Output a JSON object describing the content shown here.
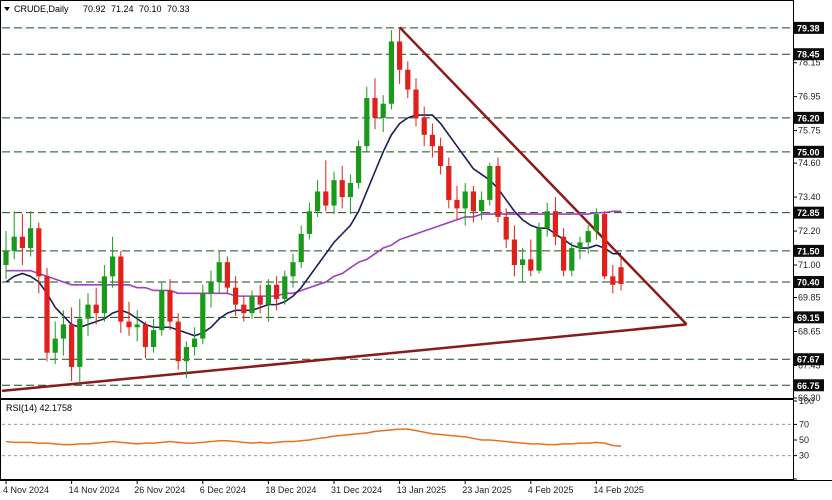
{
  "header": {
    "symbol_label": "CRUDE,Daily",
    "ohlc": [
      "70.92",
      "71.24",
      "70.10",
      "70.33"
    ]
  },
  "colors": {
    "bull": "#1a9a1a",
    "bear": "#e0201a",
    "sma_fast": "#1c1c5a",
    "sma_slow": "#a040c0",
    "trendline": "#8b1a1a",
    "rsi": "#e87020",
    "level_box": "#0b0b0b",
    "level_text": "#ffffff"
  },
  "chart_data": [
    {
      "type": "candlestick",
      "title": "",
      "symbol": "CRUDE",
      "timeframe": "Daily",
      "ylim": [
        66.3,
        79.8
      ],
      "y_ticks": [
        "79.38",
        "78.45",
        "78.15",
        "76.95",
        "76.20",
        "75.75",
        "75.00",
        "74.60",
        "73.40",
        "72.85",
        "72.20",
        "71.50",
        "71.00",
        "70.40",
        "69.85",
        "69.15",
        "68.65",
        "67.67",
        "67.45",
        "66.75",
        "66.30"
      ],
      "x_ticks": [
        "4 Nov 2024",
        "14 Nov 2024",
        "26 Nov 2024",
        "6 Dec 2024",
        "18 Dec 2024",
        "31 Dec 2024",
        "13 Jan 2025",
        "23 Jan 2025",
        "4 Feb 2025",
        "14 Feb 2025"
      ],
      "x_tick_index": [
        0,
        8,
        16,
        24,
        32,
        40,
        48,
        56,
        64,
        72
      ],
      "horizontal_levels": [
        79.38,
        78.45,
        76.2,
        75.0,
        72.85,
        71.5,
        70.4,
        69.15,
        67.67,
        66.75
      ],
      "candles": [
        {
          "o": 71.0,
          "h": 72.2,
          "l": 70.5,
          "c": 71.5
        },
        {
          "o": 71.5,
          "h": 72.9,
          "l": 71.2,
          "c": 72.0
        },
        {
          "o": 72.0,
          "h": 72.8,
          "l": 71.0,
          "c": 71.6
        },
        {
          "o": 71.6,
          "h": 72.9,
          "l": 71.3,
          "c": 72.3
        },
        {
          "o": 72.3,
          "h": 72.5,
          "l": 70.0,
          "c": 70.6
        },
        {
          "o": 70.6,
          "h": 70.9,
          "l": 67.6,
          "c": 67.9
        },
        {
          "o": 67.9,
          "h": 69.0,
          "l": 67.5,
          "c": 68.4
        },
        {
          "o": 68.4,
          "h": 69.4,
          "l": 67.8,
          "c": 68.9
        },
        {
          "o": 68.9,
          "h": 69.5,
          "l": 66.9,
          "c": 67.4
        },
        {
          "o": 67.4,
          "h": 69.8,
          "l": 66.8,
          "c": 69.1
        },
        {
          "o": 69.1,
          "h": 70.0,
          "l": 68.5,
          "c": 69.6
        },
        {
          "o": 69.6,
          "h": 70.2,
          "l": 68.9,
          "c": 69.3
        },
        {
          "o": 69.3,
          "h": 71.0,
          "l": 69.0,
          "c": 70.6
        },
        {
          "o": 70.6,
          "h": 72.0,
          "l": 70.2,
          "c": 71.3
        },
        {
          "o": 71.3,
          "h": 71.5,
          "l": 68.6,
          "c": 69.0
        },
        {
          "o": 69.0,
          "h": 69.7,
          "l": 68.5,
          "c": 68.8
        },
        {
          "o": 68.8,
          "h": 69.4,
          "l": 68.3,
          "c": 68.9
        },
        {
          "o": 68.9,
          "h": 69.0,
          "l": 67.7,
          "c": 68.1
        },
        {
          "o": 68.1,
          "h": 69.1,
          "l": 67.9,
          "c": 68.7
        },
        {
          "o": 68.7,
          "h": 70.4,
          "l": 68.5,
          "c": 70.1
        },
        {
          "o": 70.1,
          "h": 70.5,
          "l": 68.7,
          "c": 69.0
        },
        {
          "o": 69.0,
          "h": 69.3,
          "l": 67.3,
          "c": 67.6
        },
        {
          "o": 67.6,
          "h": 68.3,
          "l": 67.0,
          "c": 68.1
        },
        {
          "o": 68.1,
          "h": 68.8,
          "l": 67.8,
          "c": 68.4
        },
        {
          "o": 68.4,
          "h": 70.3,
          "l": 68.2,
          "c": 70.0
        },
        {
          "o": 70.0,
          "h": 70.8,
          "l": 69.5,
          "c": 70.4
        },
        {
          "o": 70.4,
          "h": 71.5,
          "l": 70.0,
          "c": 71.1
        },
        {
          "o": 71.1,
          "h": 71.3,
          "l": 70.0,
          "c": 70.2
        },
        {
          "o": 70.2,
          "h": 70.6,
          "l": 69.2,
          "c": 69.6
        },
        {
          "o": 69.6,
          "h": 69.9,
          "l": 69.0,
          "c": 69.3
        },
        {
          "o": 69.3,
          "h": 70.1,
          "l": 69.1,
          "c": 69.9
        },
        {
          "o": 69.9,
          "h": 70.3,
          "l": 69.3,
          "c": 69.6
        },
        {
          "o": 69.6,
          "h": 70.5,
          "l": 69.0,
          "c": 70.3
        },
        {
          "o": 70.3,
          "h": 70.6,
          "l": 69.4,
          "c": 69.8
        },
        {
          "o": 69.8,
          "h": 70.8,
          "l": 69.6,
          "c": 70.6
        },
        {
          "o": 70.6,
          "h": 71.4,
          "l": 70.2,
          "c": 71.1
        },
        {
          "o": 71.1,
          "h": 72.4,
          "l": 70.9,
          "c": 72.1
        },
        {
          "o": 72.1,
          "h": 73.2,
          "l": 71.9,
          "c": 72.9
        },
        {
          "o": 72.9,
          "h": 74.0,
          "l": 72.7,
          "c": 73.6
        },
        {
          "o": 73.6,
          "h": 74.7,
          "l": 72.9,
          "c": 73.1
        },
        {
          "o": 73.1,
          "h": 74.3,
          "l": 72.8,
          "c": 74.0
        },
        {
          "o": 74.0,
          "h": 74.5,
          "l": 73.0,
          "c": 73.4
        },
        {
          "o": 73.4,
          "h": 74.2,
          "l": 72.8,
          "c": 73.9
        },
        {
          "o": 73.9,
          "h": 75.4,
          "l": 73.7,
          "c": 75.2
        },
        {
          "o": 75.2,
          "h": 77.3,
          "l": 75.0,
          "c": 76.9
        },
        {
          "o": 76.9,
          "h": 77.6,
          "l": 75.8,
          "c": 76.2
        },
        {
          "o": 76.2,
          "h": 77.0,
          "l": 75.7,
          "c": 76.7
        },
        {
          "o": 76.7,
          "h": 79.3,
          "l": 76.5,
          "c": 78.9
        },
        {
          "o": 78.9,
          "h": 79.38,
          "l": 77.4,
          "c": 77.9
        },
        {
          "o": 77.9,
          "h": 78.2,
          "l": 76.9,
          "c": 77.2
        },
        {
          "o": 77.2,
          "h": 77.6,
          "l": 75.9,
          "c": 76.2
        },
        {
          "o": 76.2,
          "h": 76.6,
          "l": 75.2,
          "c": 75.6
        },
        {
          "o": 75.6,
          "h": 76.0,
          "l": 74.8,
          "c": 75.2
        },
        {
          "o": 75.2,
          "h": 75.5,
          "l": 74.2,
          "c": 74.5
        },
        {
          "o": 74.5,
          "h": 74.8,
          "l": 73.0,
          "c": 73.3
        },
        {
          "o": 73.3,
          "h": 73.8,
          "l": 72.6,
          "c": 73.0
        },
        {
          "o": 73.0,
          "h": 73.9,
          "l": 72.4,
          "c": 73.6
        },
        {
          "o": 73.6,
          "h": 73.8,
          "l": 72.5,
          "c": 72.9
        },
        {
          "o": 72.9,
          "h": 73.6,
          "l": 72.6,
          "c": 73.3
        },
        {
          "o": 73.3,
          "h": 74.6,
          "l": 73.1,
          "c": 74.5
        },
        {
          "o": 74.5,
          "h": 74.8,
          "l": 72.5,
          "c": 72.7
        },
        {
          "o": 72.7,
          "h": 73.0,
          "l": 71.6,
          "c": 71.9
        },
        {
          "o": 71.9,
          "h": 72.4,
          "l": 70.6,
          "c": 71.0
        },
        {
          "o": 71.0,
          "h": 71.6,
          "l": 70.4,
          "c": 71.2
        },
        {
          "o": 71.2,
          "h": 71.9,
          "l": 70.6,
          "c": 70.8
        },
        {
          "o": 70.8,
          "h": 72.5,
          "l": 70.7,
          "c": 72.3
        },
        {
          "o": 72.3,
          "h": 73.2,
          "l": 72.0,
          "c": 72.9
        },
        {
          "o": 72.9,
          "h": 73.4,
          "l": 71.7,
          "c": 72.0
        },
        {
          "o": 72.0,
          "h": 72.3,
          "l": 70.6,
          "c": 70.8
        },
        {
          "o": 70.8,
          "h": 71.8,
          "l": 70.6,
          "c": 71.6
        },
        {
          "o": 71.6,
          "h": 72.0,
          "l": 71.2,
          "c": 71.8
        },
        {
          "o": 71.8,
          "h": 72.4,
          "l": 71.4,
          "c": 72.2
        },
        {
          "o": 72.2,
          "h": 73.0,
          "l": 71.9,
          "c": 72.8
        },
        {
          "o": 72.8,
          "h": 72.9,
          "l": 70.5,
          "c": 70.6
        },
        {
          "o": 70.6,
          "h": 71.0,
          "l": 70.0,
          "c": 70.3
        },
        {
          "o": 70.92,
          "h": 71.24,
          "l": 70.1,
          "c": 70.33
        }
      ],
      "sma_fast": [
        70.4,
        70.6,
        70.7,
        70.6,
        70.4,
        70.0,
        69.5,
        69.2,
        68.9,
        68.8,
        68.9,
        69.0,
        69.1,
        69.3,
        69.4,
        69.3,
        69.1,
        68.9,
        68.8,
        68.8,
        68.8,
        68.7,
        68.6,
        68.5,
        68.6,
        68.8,
        69.1,
        69.3,
        69.4,
        69.4,
        69.4,
        69.5,
        69.6,
        69.6,
        69.7,
        69.9,
        70.2,
        70.6,
        71.0,
        71.4,
        71.8,
        72.1,
        72.4,
        72.9,
        73.6,
        74.3,
        75.0,
        75.6,
        76.0,
        76.2,
        76.3,
        76.3,
        76.3,
        76.0,
        75.6,
        75.2,
        74.8,
        74.4,
        74.2,
        74.0,
        73.7,
        73.3,
        72.9,
        72.6,
        72.4,
        72.3,
        72.3,
        72.1,
        71.9,
        71.7,
        71.6,
        71.6,
        71.7,
        71.6,
        71.4,
        71.4
      ],
      "sma_slow": [
        70.8,
        70.8,
        70.8,
        70.8,
        70.7,
        70.6,
        70.5,
        70.4,
        70.3,
        70.3,
        70.3,
        70.3,
        70.3,
        70.3,
        70.3,
        70.3,
        70.2,
        70.2,
        70.1,
        70.1,
        70.1,
        70.0,
        70.0,
        70.0,
        70.0,
        70.0,
        70.0,
        70.0,
        69.9,
        69.9,
        69.9,
        69.9,
        69.9,
        69.9,
        70.0,
        70.0,
        70.1,
        70.2,
        70.3,
        70.4,
        70.6,
        70.7,
        70.9,
        71.1,
        71.2,
        71.4,
        71.6,
        71.7,
        71.9,
        72.0,
        72.1,
        72.2,
        72.3,
        72.4,
        72.5,
        72.6,
        72.7,
        72.7,
        72.8,
        72.8,
        72.8,
        72.8,
        72.8,
        72.8,
        72.8,
        72.8,
        72.8,
        72.8,
        72.8,
        72.8,
        72.8,
        72.8,
        72.85,
        72.85,
        72.9,
        72.9
      ],
      "trendlines": [
        {
          "from": {
            "index": -0.5,
            "value": 66.55
          },
          "to": {
            "index": 83,
            "value": 68.9
          }
        },
        {
          "from": {
            "index": 48,
            "value": 79.4
          },
          "to": {
            "index": 83,
            "value": 68.9
          }
        }
      ]
    },
    {
      "type": "line",
      "title": "",
      "series_label": "RSI(14) 42.1758",
      "ylim": [
        0,
        100
      ],
      "y_ticks": [
        "100",
        "70",
        "50",
        "30",
        "0"
      ],
      "reference_levels": [
        70,
        30
      ],
      "values": [
        48,
        47,
        47,
        47,
        46,
        46,
        45,
        44,
        44,
        45,
        45,
        46,
        47,
        48,
        47,
        46,
        45,
        46,
        46,
        47,
        48,
        47,
        46,
        46,
        47,
        48,
        49,
        49,
        48,
        47,
        46,
        47,
        46,
        47,
        48,
        48,
        49,
        50,
        52,
        53,
        55,
        56,
        57,
        58,
        59,
        61,
        62,
        63,
        64,
        64,
        62,
        60,
        58,
        57,
        56,
        55,
        54,
        52,
        50,
        50,
        49,
        48,
        47,
        46,
        45,
        45,
        44,
        44,
        45,
        45,
        46,
        46,
        47,
        46,
        43,
        42.18
      ]
    }
  ]
}
